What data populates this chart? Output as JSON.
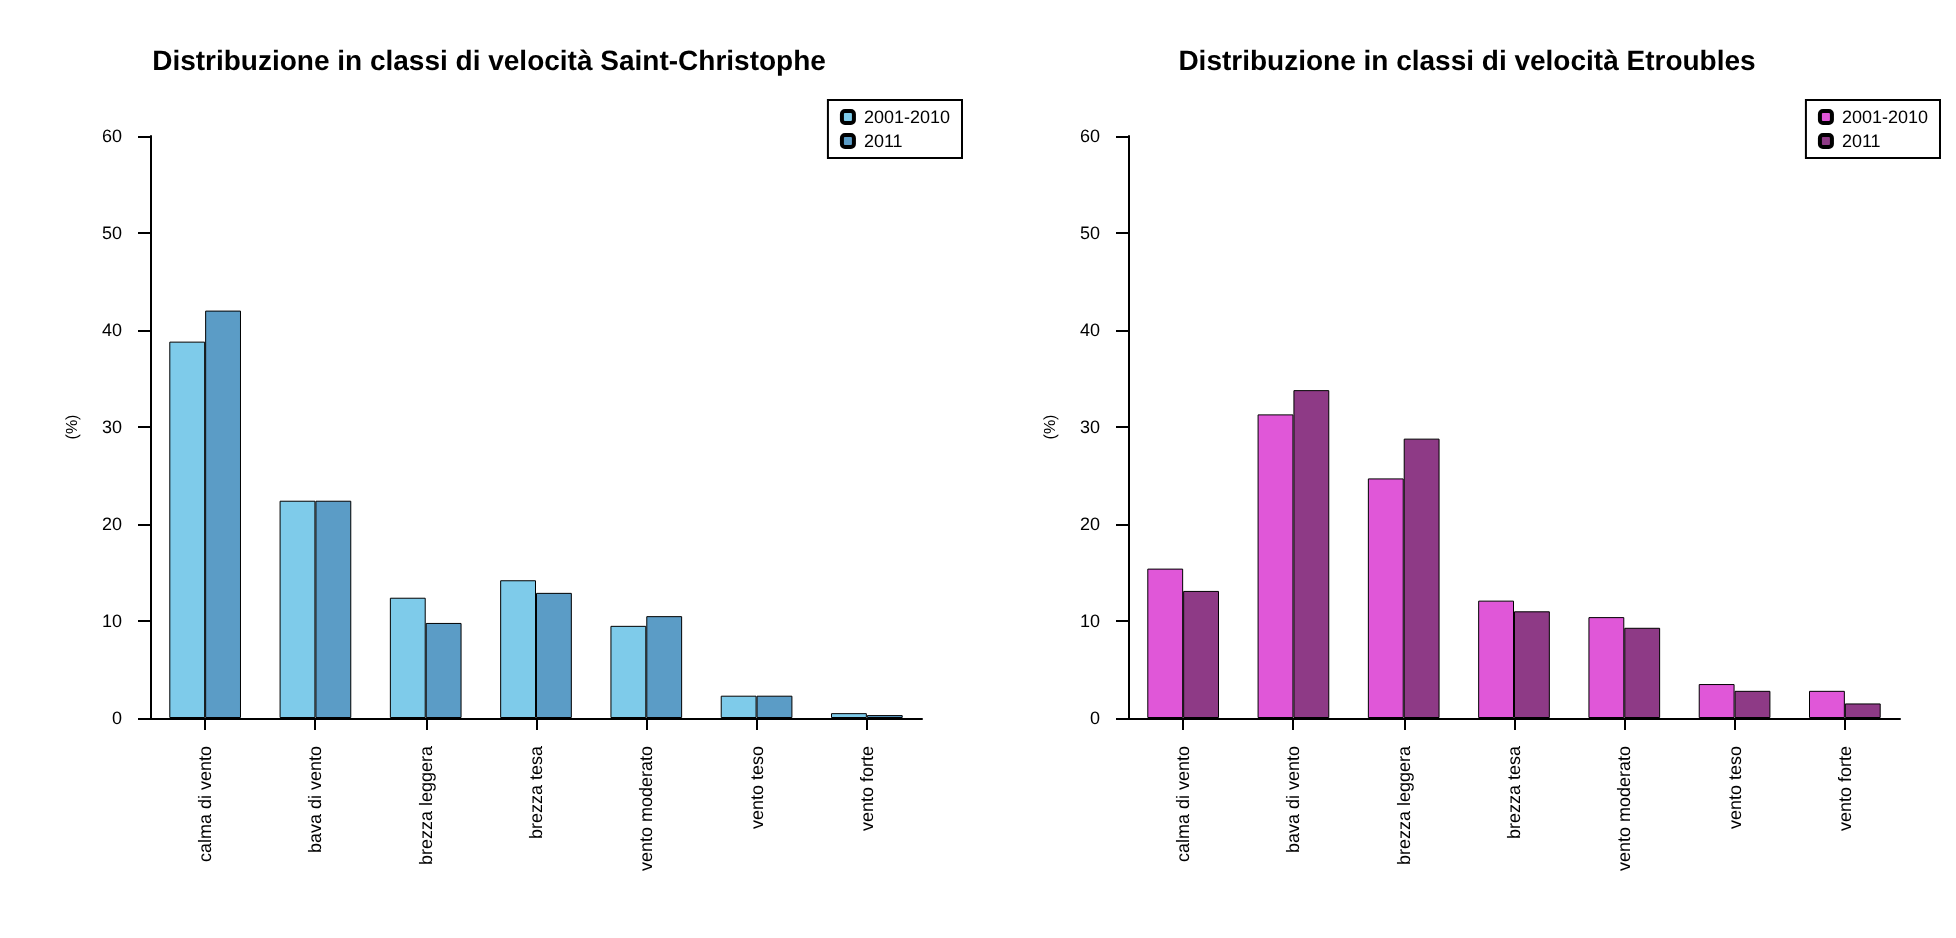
{
  "chart_data": [
    {
      "type": "bar",
      "title": "Distribuzione in classi di velocità Saint-Christophe",
      "ylabel": "(%)",
      "categories": [
        "calma di vento",
        "bava di vento",
        "brezza leggera",
        "brezza tesa",
        "vento moderato",
        "vento teso",
        "vento forte"
      ],
      "series": [
        {
          "name": "2001-2010",
          "color": "#7ecbea",
          "values": [
            38.8,
            22.4,
            12.4,
            14.2,
            9.5,
            2.3,
            0.5
          ]
        },
        {
          "name": "2011",
          "color": "#5b9cc6",
          "values": [
            42.0,
            22.4,
            9.8,
            12.9,
            10.5,
            2.3,
            0.3
          ]
        }
      ],
      "ylim": [
        0,
        60
      ],
      "yticks": [
        0,
        10,
        20,
        30,
        40,
        50,
        60
      ],
      "grid": false,
      "legend": "top right"
    },
    {
      "type": "bar",
      "title": "Distribuzione in classi di velocità Etroubles",
      "ylabel": "(%)",
      "categories": [
        "calma di vento",
        "bava di vento",
        "brezza leggera",
        "brezza tesa",
        "vento moderato",
        "vento teso",
        "vento forte"
      ],
      "series": [
        {
          "name": "2001-2010",
          "color": "#e057d8",
          "values": [
            15.4,
            31.3,
            24.7,
            12.1,
            10.4,
            3.5,
            2.8
          ]
        },
        {
          "name": "2011",
          "color": "#8e3a86",
          "values": [
            13.1,
            33.8,
            28.8,
            11.0,
            9.3,
            2.8,
            1.5
          ]
        }
      ],
      "ylim": [
        0,
        60
      ],
      "yticks": [
        0,
        10,
        20,
        30,
        40,
        50,
        60
      ],
      "grid": false,
      "legend": "top right"
    }
  ]
}
